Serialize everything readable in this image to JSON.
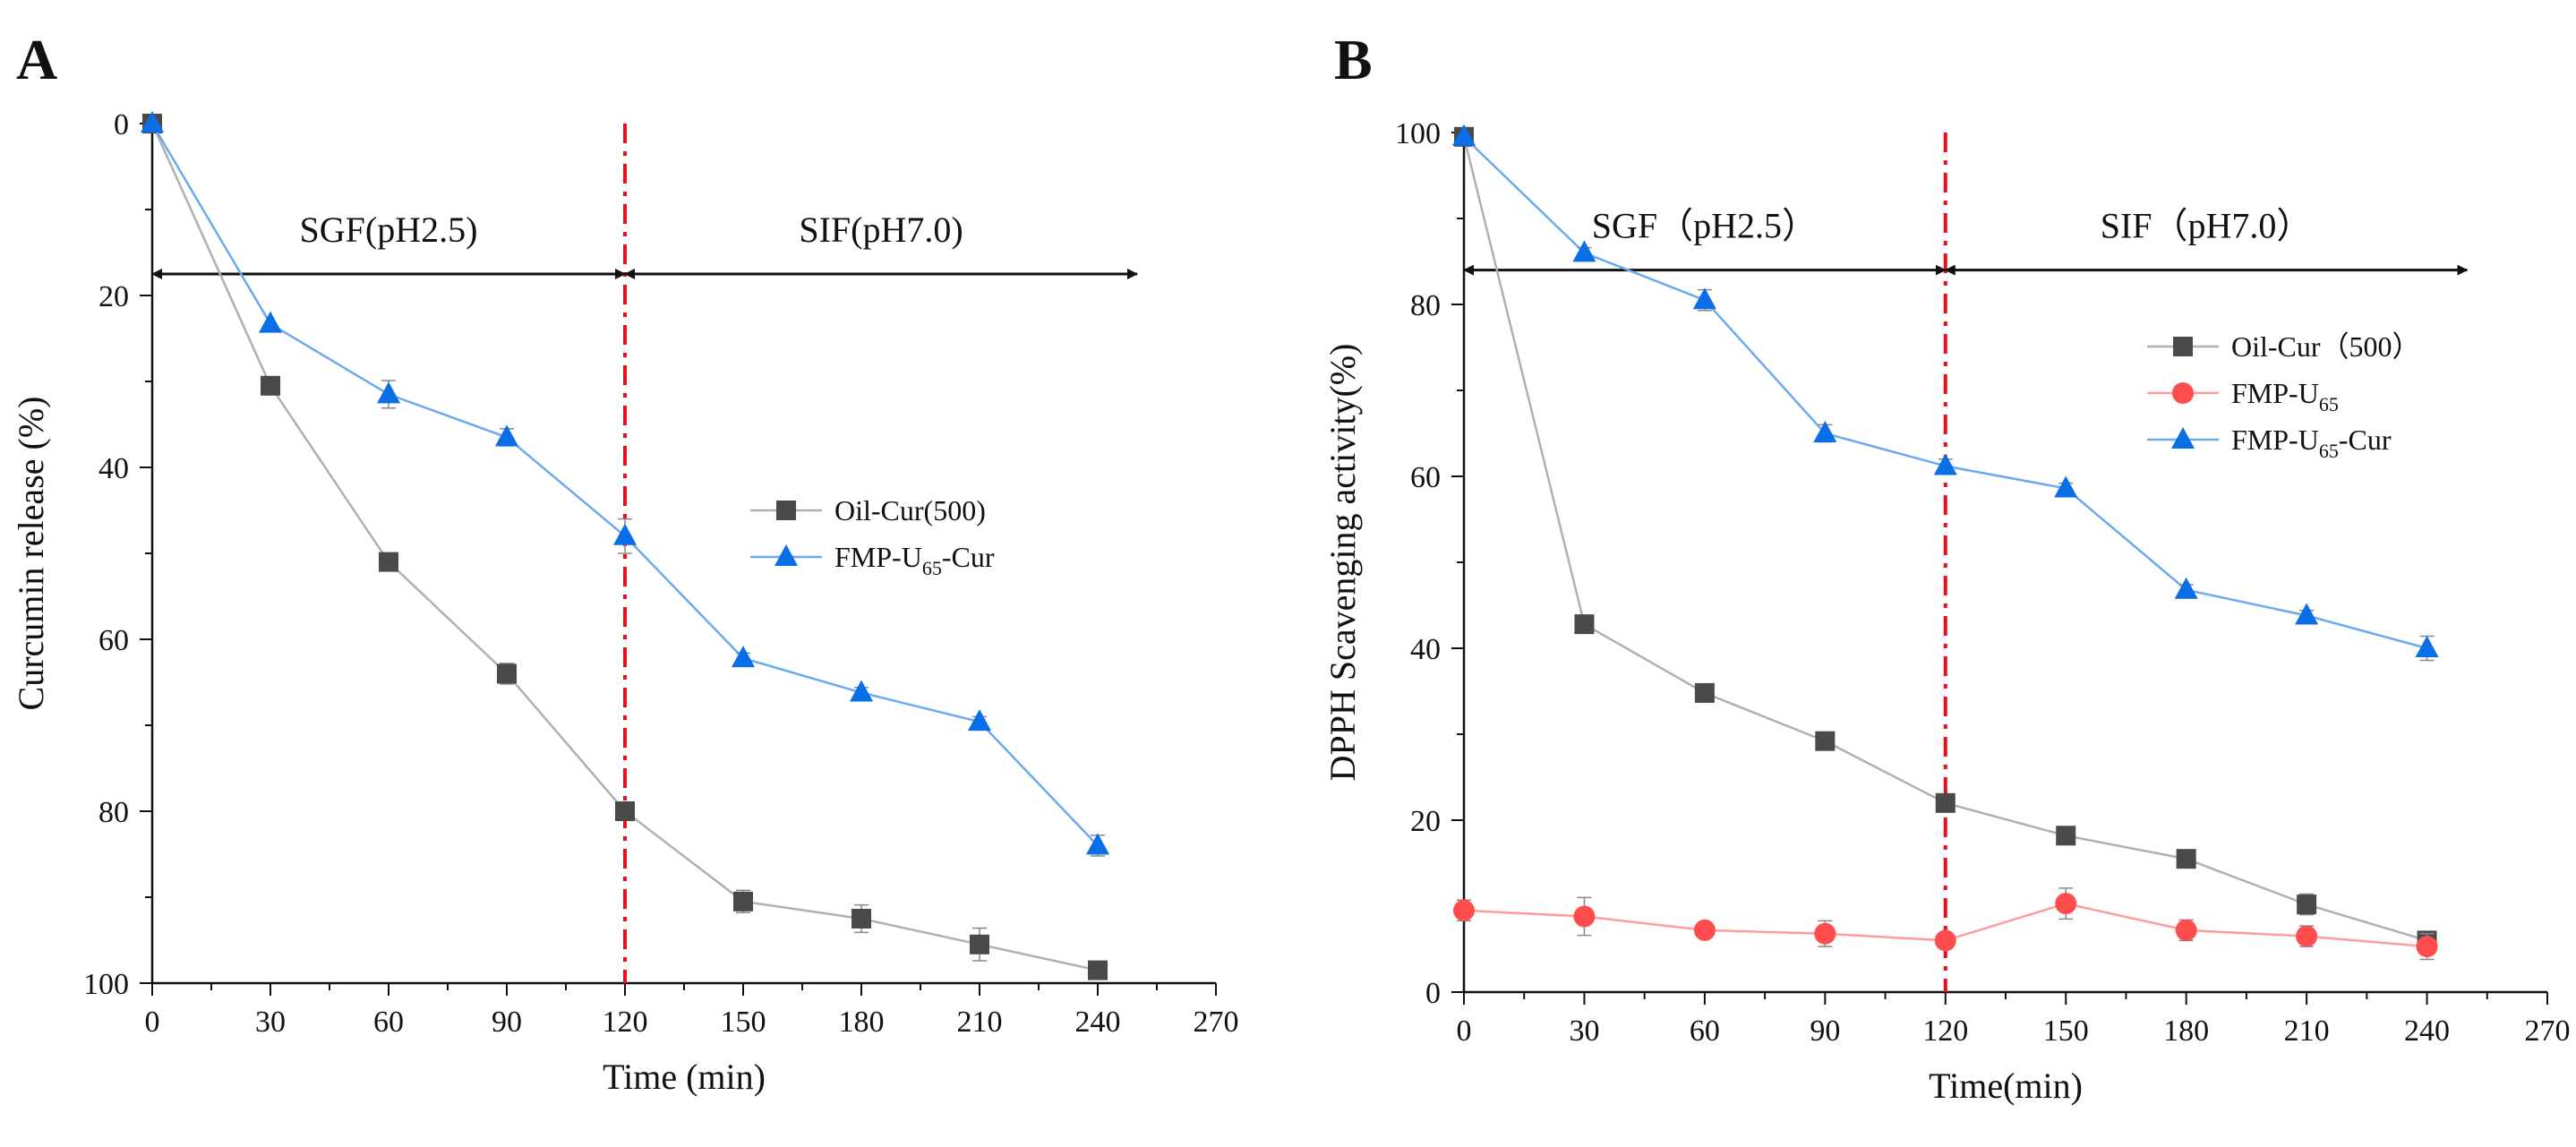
{
  "colors": {
    "oil": "#4a4a4a",
    "oil_line": "#b0b0b0",
    "fmp": "#ff4d4d",
    "fmp_line": "#ff9c9c",
    "cur": "#0a6ee6",
    "cur_line": "#6aaaf0",
    "divider": "#e8101a",
    "axis": "#111111"
  },
  "chart_data": [
    {
      "type": "line",
      "panel_label": "A",
      "xlabel": "Time (min)",
      "ylabel": "Curcumin release (%)",
      "xlim": [
        0,
        270
      ],
      "ylim": [
        0,
        100
      ],
      "y_inverted": true,
      "xticks": [
        "0",
        "30",
        "60",
        "90",
        "120",
        "150",
        "180",
        "210",
        "240",
        "270"
      ],
      "yticks": [
        "0",
        "20",
        "40",
        "60",
        "80",
        "100"
      ],
      "phase_divider_x": 120,
      "phases": [
        {
          "label": "SGF(pH2.5)",
          "from": 0,
          "to": 120
        },
        {
          "label": "SIF(pH7.0)",
          "from": 120,
          "to": 250
        }
      ],
      "phase_arrow_y": 17.5,
      "legend_position": "center-right",
      "series": [
        {
          "name": "Oil-Cur(500)",
          "legend_parts": [
            "Oil-Cur(500)"
          ],
          "marker": "square",
          "color": "oil",
          "line_color": "oil_line",
          "x": [
            0,
            30,
            60,
            90,
            120,
            150,
            180,
            210,
            240
          ],
          "y": [
            0,
            30.5,
            51,
            64,
            80,
            90.5,
            92.5,
            95.5,
            98.5
          ],
          "err": [
            0,
            0,
            0,
            1.2,
            0.8,
            1.3,
            1.6,
            1.9,
            0.8
          ]
        },
        {
          "name": "FMP-U65-Cur",
          "legend_parts": [
            "FMP-U",
            "65",
            "-Cur"
          ],
          "marker": "triangle",
          "color": "cur",
          "line_color": "cur_line",
          "x": [
            0,
            30,
            60,
            90,
            120,
            150,
            180,
            210,
            240
          ],
          "y": [
            0,
            23.3,
            31.5,
            36.5,
            48,
            62.2,
            66.2,
            69.6,
            84
          ],
          "err": [
            0,
            0,
            1.6,
            1,
            2,
            0.6,
            0.6,
            0.6,
            1.2
          ]
        }
      ]
    },
    {
      "type": "line",
      "panel_label": "B",
      "xlabel": "Time(min)",
      "ylabel": "DPPH Scavenging activity(%)",
      "xlim": [
        0,
        270
      ],
      "ylim": [
        0,
        100
      ],
      "y_inverted": false,
      "xticks": [
        "0",
        "30",
        "60",
        "90",
        "120",
        "150",
        "180",
        "210",
        "240",
        "270"
      ],
      "yticks": [
        "0",
        "20",
        "40",
        "60",
        "80",
        "100"
      ],
      "phase_divider_x": 120,
      "phases": [
        {
          "label": "SGF（pH2.5）",
          "from": 0,
          "to": 120
        },
        {
          "label": "SIF（pH7.0）",
          "from": 120,
          "to": 250
        }
      ],
      "phase_arrow_y": 84,
      "legend_position": "top-right",
      "series": [
        {
          "name": "Oil-Cur（500）",
          "legend_parts": [
            "Oil-Cur（500）"
          ],
          "marker": "square",
          "color": "oil",
          "line_color": "oil_line",
          "x": [
            0,
            30,
            60,
            90,
            120,
            150,
            180,
            210,
            240
          ],
          "y": [
            99.5,
            42.8,
            34.8,
            29.2,
            22,
            18.2,
            15.5,
            10.2,
            6
          ],
          "err": [
            0,
            0.6,
            0.8,
            0.6,
            0.8,
            0.5,
            0.5,
            1.2,
            0.8
          ]
        },
        {
          "name": "FMP-U65",
          "legend_parts": [
            "FMP-U",
            "65",
            ""
          ],
          "marker": "circle",
          "color": "fmp",
          "line_color": "fmp_line",
          "x": [
            0,
            30,
            60,
            90,
            120,
            150,
            180,
            210,
            240
          ],
          "y": [
            9.5,
            8.8,
            7.2,
            6.8,
            6,
            10.3,
            7.2,
            6.5,
            5.3
          ],
          "err": [
            1.2,
            2.2,
            0.8,
            1.5,
            0.8,
            1.8,
            1.2,
            1.2,
            1.5
          ]
        },
        {
          "name": "FMP-U65-Cur",
          "legend_parts": [
            "FMP-U",
            "65",
            "-Cur"
          ],
          "marker": "triangle",
          "color": "cur",
          "line_color": "cur_line",
          "x": [
            0,
            30,
            60,
            90,
            120,
            150,
            180,
            210,
            240
          ],
          "y": [
            99.5,
            86,
            80.5,
            65,
            61.2,
            58.6,
            46.8,
            43.8,
            40
          ],
          "err": [
            0,
            0.6,
            1.2,
            1,
            0.8,
            0.6,
            0.6,
            0.6,
            1.4
          ]
        }
      ]
    }
  ]
}
